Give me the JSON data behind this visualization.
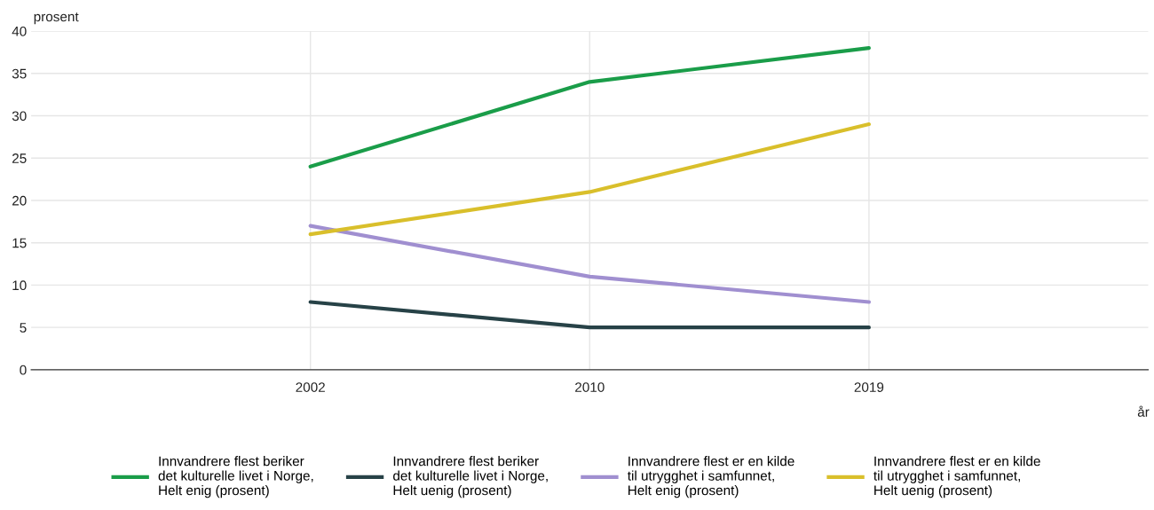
{
  "chart_data": {
    "type": "line",
    "ylabel": "prosent",
    "xlabel": "år",
    "categories": [
      "2002",
      "2010",
      "2019"
    ],
    "series": [
      {
        "name": "Innvandrere flest beriker\ndet kulturelle livet i Norge,\nHelt enig (prosent)",
        "color": "#1a9d49",
        "values": [
          24,
          34,
          38
        ]
      },
      {
        "name": "Innvandrere flest beriker\ndet kulturelle livet i Norge,\nHelt uenig (prosent)",
        "color": "#274247",
        "values": [
          8,
          5,
          5
        ]
      },
      {
        "name": "Innvandrere flest er en kilde\ntil utrygghet i samfunnet,\nHelt enig (prosent)",
        "color": "#a08fd0",
        "values": [
          17,
          11,
          8
        ]
      },
      {
        "name": "Innvandrere flest er en kilde\ntil utrygghet i samfunnet,\nHelt uenig (prosent)",
        "color": "#d9bf2b",
        "values": [
          16,
          21,
          29
        ]
      }
    ],
    "ylim": [
      0,
      40
    ],
    "yticks": [
      0,
      5,
      10,
      15,
      20,
      25,
      30,
      35,
      40
    ],
    "grid": true,
    "legend": "bottom",
    "marker": "none",
    "line_style": "solid"
  }
}
